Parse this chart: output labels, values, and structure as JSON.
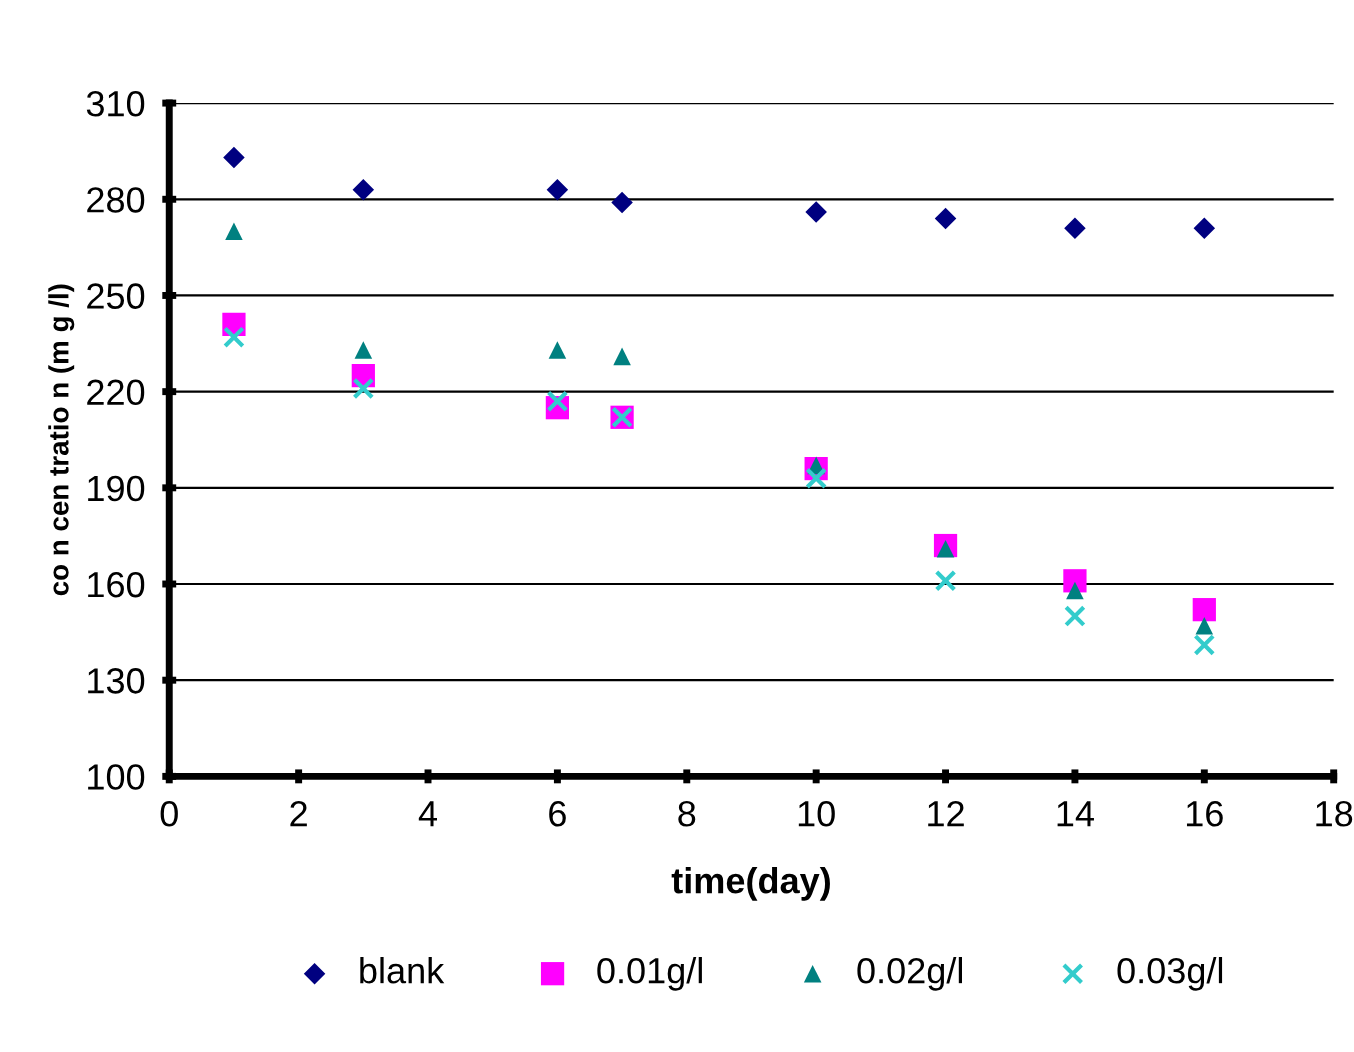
{
  "chart_data": {
    "type": "scatter",
    "xlabel": "time(day)",
    "ylabel": "co n cen tratio n (m g /l)",
    "xlim": [
      0,
      18
    ],
    "xticks": [
      0,
      2,
      4,
      6,
      8,
      10,
      12,
      14,
      16,
      18
    ],
    "ylim": [
      100,
      310
    ],
    "yticks": [
      100,
      130,
      160,
      190,
      220,
      250,
      280,
      310
    ],
    "grid": "y",
    "legend": "bottom",
    "series": [
      {
        "name": "blank",
        "color": "#000080",
        "marker": "diamond",
        "x": [
          1,
          3,
          6,
          7,
          10,
          12,
          14,
          16
        ],
        "values": [
          293,
          283,
          283,
          279,
          276,
          274,
          271,
          271
        ]
      },
      {
        "name": "0.01g/l",
        "color": "#ff00ff",
        "marker": "square",
        "x": [
          1,
          3,
          6,
          7,
          10,
          12,
          14,
          16
        ],
        "values": [
          241,
          225,
          215,
          212,
          196,
          172,
          161,
          152
        ]
      },
      {
        "name": "0.02g/l",
        "color": "#008080",
        "marker": "triangle",
        "x": [
          1,
          3,
          6,
          7,
          10,
          12,
          14,
          16
        ],
        "values": [
          270,
          233,
          233,
          231,
          197,
          171,
          158,
          147
        ]
      },
      {
        "name": "0.03g/l",
        "color": "#33cccc",
        "marker": "cross",
        "x": [
          1,
          3,
          6,
          7,
          10,
          12,
          14,
          16
        ],
        "values": [
          237,
          221,
          217,
          212,
          193,
          161,
          150,
          141
        ]
      }
    ]
  }
}
